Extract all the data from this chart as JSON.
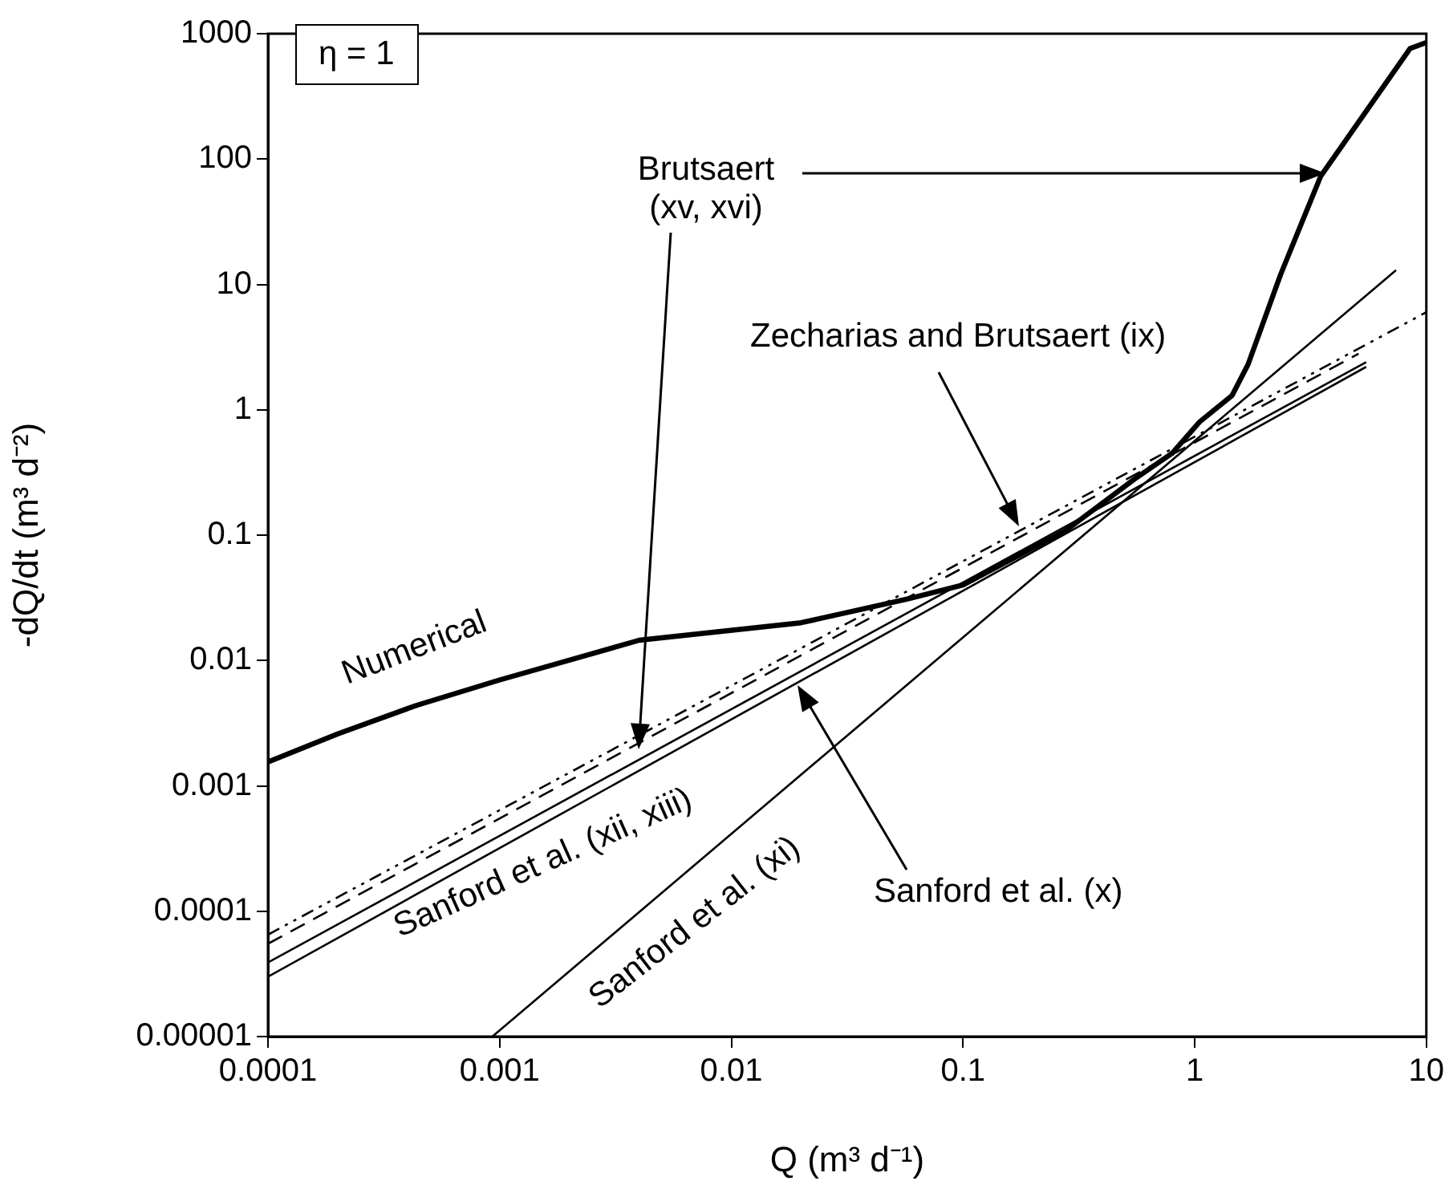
{
  "chart_data": {
    "type": "line",
    "xlabel": "Q (m³ d⁻¹)",
    "ylabel": "-dQ/dt (m³ d⁻²)",
    "log": "xy",
    "grid": false,
    "legend": false,
    "marker": "none",
    "xlim": [
      0.0001,
      10
    ],
    "xticks": [
      0.0001,
      0.001,
      0.01,
      0.1,
      1,
      10
    ],
    "ylim": [
      1e-05,
      1000
    ],
    "yticks": [
      {
        "value": 1e-05,
        "label": "0.00001"
      },
      0.0001,
      0.001,
      0.01,
      0.1,
      1,
      10,
      100,
      1000
    ],
    "series": [
      {
        "color": "#000000",
        "line_style": "solid",
        "x": [
          0.0001,
          0.0002,
          0.00044,
          0.001,
          0.004,
          0.02,
          0.058,
          0.1,
          0.28,
          0.55,
          0.8,
          1.05,
          1.45,
          1.7,
          2.35,
          3.5,
          8.5,
          10
        ],
        "values": [
          0.00155,
          0.0026,
          0.0044,
          0.007,
          0.0145,
          0.02,
          0.031,
          0.04,
          0.11,
          0.28,
          0.45,
          0.8,
          1.3,
          2.3,
          12,
          73,
          760,
          850
        ]
      },
      {
        "color": "#000000",
        "line_style": "dashed",
        "x": [
          0.0001,
          5.1
        ],
        "values": [
          5.5e-05,
          2.8
        ]
      },
      {
        "color": "#000000",
        "line_style": "dotted",
        "x": [
          0.0001,
          10
        ],
        "values": [
          6.5e-05,
          6
        ]
      },
      {
        "color": "#000000",
        "line_style": "solid",
        "x": [
          0.0001,
          5.5
        ],
        "values": [
          3.9e-05,
          2.4
        ]
      },
      {
        "color": "#000000",
        "line_style": "solid",
        "x": [
          0.0001,
          5.5
        ],
        "values": [
          3e-05,
          2.2
        ]
      },
      {
        "color": "#000000",
        "line_style": "solid",
        "x": [
          0.00093,
          7.4
        ],
        "values": [
          1e-05,
          13
        ]
      }
    ],
    "annotations": [
      "η = 1",
      "Numerical",
      "Brutsaert (xv, xvi)",
      "Zecharias and Brutsaert (ix)",
      "Sanford et al. (x)",
      "Sanford et al. (xii, xiii)",
      "Sanford et al. (xi)"
    ]
  }
}
